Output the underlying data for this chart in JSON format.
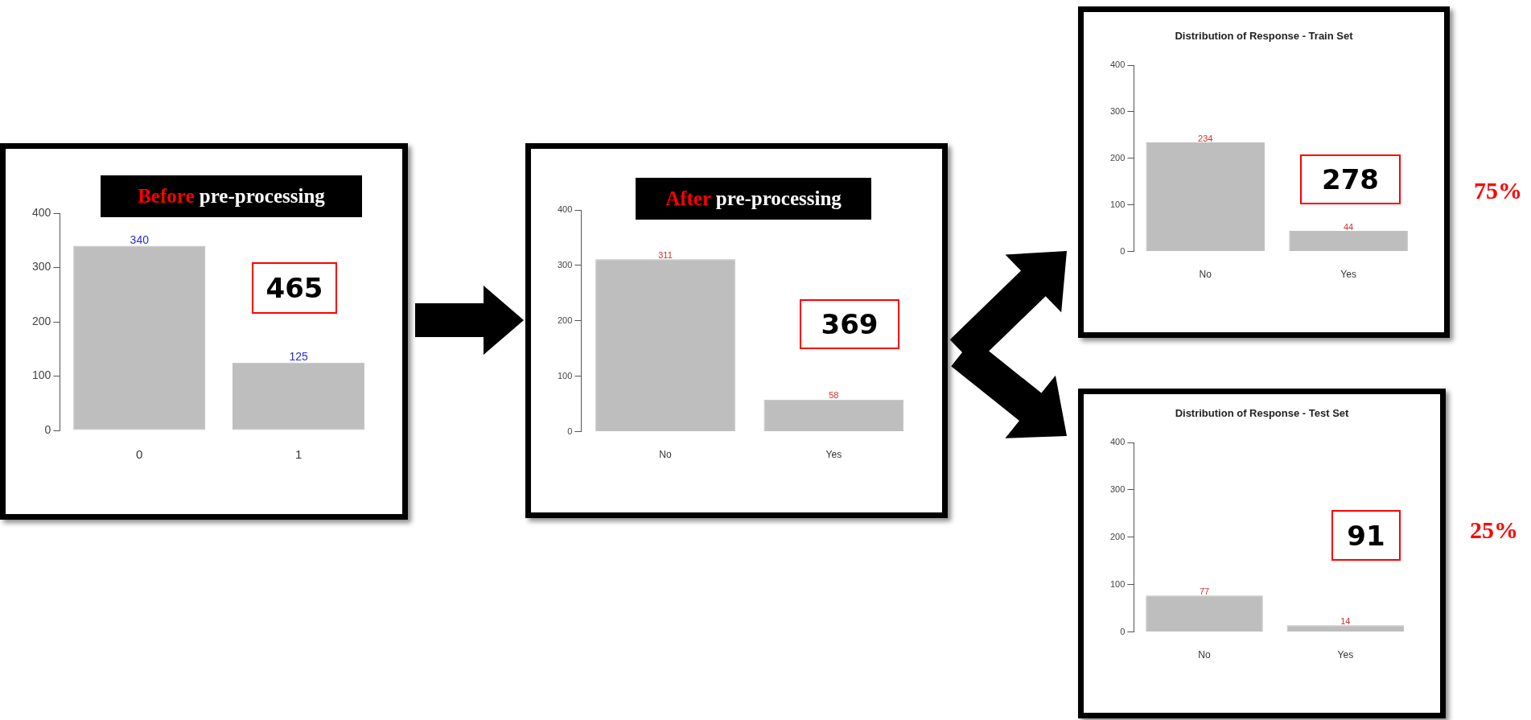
{
  "chart_data": [
    {
      "type": "bar",
      "title": "Before pre-processing",
      "categories": [
        "0",
        "1"
      ],
      "series": [
        {
          "color": "#bebebe",
          "values": [
            340,
            125
          ]
        }
      ],
      "ylim": [
        0,
        400
      ],
      "yticks": [
        0,
        100,
        200,
        300,
        400
      ],
      "data_labels": true,
      "annotations": [
        "465"
      ]
    },
    {
      "type": "bar",
      "title": "After pre-processing",
      "categories": [
        "No",
        "Yes"
      ],
      "series": [
        {
          "color": "#bebebe",
          "values": [
            311,
            58
          ]
        }
      ],
      "ylim": [
        0,
        400
      ],
      "yticks": [
        0,
        100,
        200,
        300,
        400
      ],
      "data_labels": true,
      "annotations": [
        "369"
      ]
    },
    {
      "type": "bar",
      "title": "Distribution of Response - Train Set",
      "categories": [
        "No",
        "Yes"
      ],
      "series": [
        {
          "color": "#bebebe",
          "values": [
            234,
            44
          ]
        }
      ],
      "ylim": [
        0,
        400
      ],
      "yticks": [
        0,
        100,
        200,
        300,
        400
      ],
      "data_labels": true,
      "annotations": [
        "278",
        "75%"
      ]
    },
    {
      "type": "bar",
      "title": "Distribution of Response - Test Set",
      "categories": [
        "No",
        "Yes"
      ],
      "series": [
        {
          "color": "#bebebe",
          "values": [
            77,
            14
          ]
        }
      ],
      "ylim": [
        0,
        400
      ],
      "yticks": [
        0,
        100,
        200,
        300,
        400
      ],
      "data_labels": true,
      "annotations": [
        "91",
        "25%"
      ]
    }
  ]
}
